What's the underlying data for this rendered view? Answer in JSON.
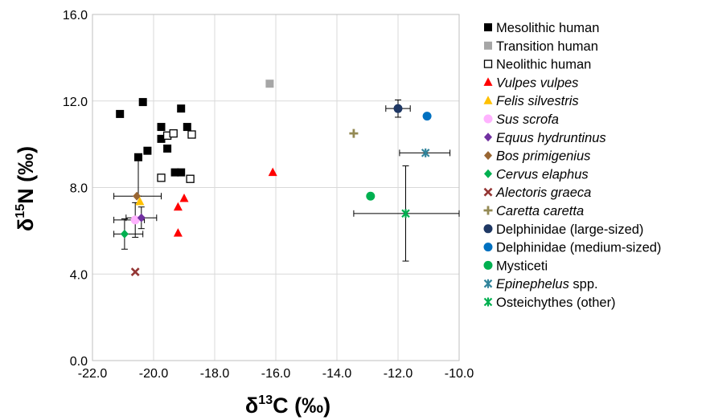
{
  "chart_data": {
    "type": "scatter",
    "x_axis": {
      "title_main": "δ",
      "title_sup": "13",
      "title_rest": "C (‰)",
      "range": [
        -22.0,
        -10.0
      ],
      "ticks": [
        -22.0,
        -20.0,
        -18.0,
        -16.0,
        -14.0,
        -12.0,
        -10.0
      ],
      "tick_labels": [
        "-22.0",
        "-20.0",
        "-18.0",
        "-16.0",
        "-14.0",
        "-12.0",
        "-10.0"
      ]
    },
    "y_axis": {
      "title_main": "δ",
      "title_sup": "15",
      "title_rest": "N (‰)",
      "range": [
        0.0,
        16.0
      ],
      "ticks": [
        0.0,
        4.0,
        8.0,
        12.0,
        16.0
      ],
      "tick_labels": [
        "0.0",
        "4.0",
        "8.0",
        "12.0",
        "16.0"
      ]
    },
    "grid": true,
    "legend_position": "right",
    "series": [
      {
        "name": "Mesolithic human",
        "italic": false,
        "marker": "square",
        "color": "#000000",
        "points": [
          [
            -21.1,
            11.4
          ],
          [
            -20.35,
            11.95
          ],
          [
            -19.1,
            11.65
          ],
          [
            -19.75,
            10.8
          ],
          [
            -18.9,
            10.8
          ],
          [
            -19.75,
            10.25
          ],
          [
            -19.55,
            9.8
          ],
          [
            -20.2,
            9.7
          ],
          [
            -20.5,
            9.4
          ],
          [
            -19.3,
            8.7
          ],
          [
            -19.1,
            8.7
          ]
        ],
        "errors": [
          {
            "x": -20.5,
            "y": 9.4,
            "ymin": 7.6,
            "ymax": 9.4
          }
        ]
      },
      {
        "name": "Transition human",
        "italic": false,
        "marker": "square",
        "color": "#a6a6a6",
        "points": [
          [
            -16.2,
            12.8
          ]
        ]
      },
      {
        "name": "Neolithic human",
        "italic": false,
        "marker": "square-open",
        "color": "#000000",
        "points": [
          [
            -19.55,
            10.4
          ],
          [
            -19.35,
            10.5
          ],
          [
            -18.75,
            10.45
          ],
          [
            -19.75,
            8.45
          ],
          [
            -18.8,
            8.4
          ]
        ]
      },
      {
        "name": "Vulpes vulpes",
        "italic": true,
        "marker": "triangle",
        "color": "#ff0000",
        "points": [
          [
            -16.1,
            8.7
          ],
          [
            -19.0,
            7.5
          ],
          [
            -19.2,
            7.1
          ],
          [
            -19.2,
            5.9
          ]
        ]
      },
      {
        "name": "Felis silvestris",
        "italic": true,
        "marker": "triangle",
        "color": "#ffc000",
        "points": [
          [
            -20.45,
            7.35
          ]
        ]
      },
      {
        "name": "Sus scrofa",
        "italic": true,
        "marker": "circle",
        "color": "#ffb3ff",
        "points": [
          [
            -20.6,
            6.5
          ]
        ],
        "errors": [
          {
            "x": -20.6,
            "y": 6.5,
            "xmin": -21.3,
            "xmax": -20.3,
            "ymin": 5.7,
            "ymax": 7.3
          }
        ]
      },
      {
        "name": "Equus hydruntinus",
        "italic": true,
        "marker": "diamond",
        "color": "#7030a0",
        "points": [
          [
            -20.4,
            6.6
          ]
        ],
        "errors": [
          {
            "x": -20.4,
            "y": 6.6,
            "xmin": -20.9,
            "xmax": -19.9,
            "ymin": 6.1,
            "ymax": 7.1
          }
        ]
      },
      {
        "name": "Bos primigenius",
        "italic": true,
        "marker": "diamond",
        "color": "#996633",
        "points": [
          [
            -20.55,
            7.6
          ]
        ],
        "errors": [
          {
            "x": -20.55,
            "y": 7.6,
            "xmin": -21.3,
            "xmax": -19.75,
            "ymin": 7.6,
            "ymax": 7.6
          }
        ]
      },
      {
        "name": "Cervus elaphus",
        "italic": true,
        "marker": "diamond",
        "color": "#00b050",
        "points": [
          [
            -20.95,
            5.85
          ]
        ],
        "errors": [
          {
            "x": -20.95,
            "y": 5.85,
            "xmin": -21.3,
            "xmax": -20.35,
            "ymin": 5.15,
            "ymax": 6.55
          }
        ]
      },
      {
        "name": "Alectoris graeca",
        "italic": true,
        "marker": "x",
        "color": "#943634",
        "points": [
          [
            -20.6,
            4.1
          ]
        ]
      },
      {
        "name": "Caretta caretta",
        "italic": true,
        "marker": "plus",
        "color": "#948a54",
        "points": [
          [
            -13.45,
            10.5
          ]
        ]
      },
      {
        "name": "Delphinidae (large-sized)",
        "italic": false,
        "marker": "circle",
        "color": "#1f3864",
        "points": [
          [
            -12.0,
            11.65
          ]
        ],
        "errors": [
          {
            "x": -12.0,
            "y": 11.65,
            "xmin": -12.4,
            "xmax": -11.6,
            "ymin": 11.25,
            "ymax": 12.05
          }
        ]
      },
      {
        "name": "Delphinidae (medium-sized)",
        "italic": false,
        "marker": "circle",
        "color": "#0070c0",
        "points": [
          [
            -11.05,
            11.3
          ]
        ]
      },
      {
        "name": "Mysticeti",
        "italic": false,
        "marker": "circle",
        "color": "#00b050",
        "points": [
          [
            -12.9,
            7.6
          ]
        ]
      },
      {
        "name": "Epinephelus",
        "name_suffix": " spp.",
        "italic": true,
        "marker": "asterisk",
        "color": "#31849b",
        "points": [
          [
            -11.1,
            9.6
          ]
        ],
        "errors": [
          {
            "x": -11.1,
            "y": 9.6,
            "xmin": -11.95,
            "xmax": -10.3,
            "ymin": 9.6,
            "ymax": 9.6
          }
        ]
      },
      {
        "name": "Osteichythes (other)",
        "italic": false,
        "marker": "asterisk",
        "color": "#00b050",
        "points": [
          [
            -11.75,
            6.8
          ]
        ],
        "errors": [
          {
            "x": -11.75,
            "y": 6.8,
            "xmin": -13.45,
            "xmax": -10.0,
            "ymin": 4.6,
            "ymax": 9.0
          }
        ]
      }
    ]
  }
}
